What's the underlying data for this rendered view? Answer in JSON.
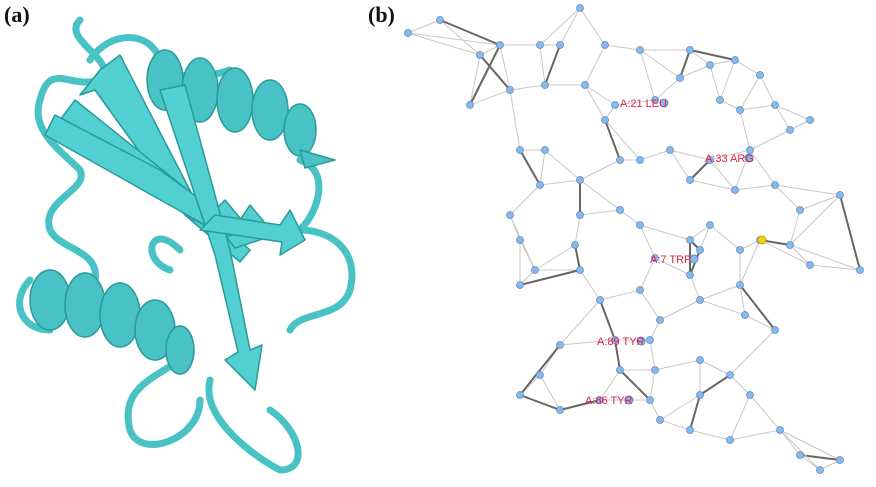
{
  "panels": {
    "a": {
      "label": "(a)"
    },
    "b": {
      "label": "(b)"
    }
  },
  "nodes": [
    {
      "label": "A:21 LEU"
    },
    {
      "label": "A:33 ARG"
    },
    {
      "label": "A:7 TRP"
    },
    {
      "label": "A:89 TYR"
    },
    {
      "label": "A:86 TYR"
    }
  ]
}
